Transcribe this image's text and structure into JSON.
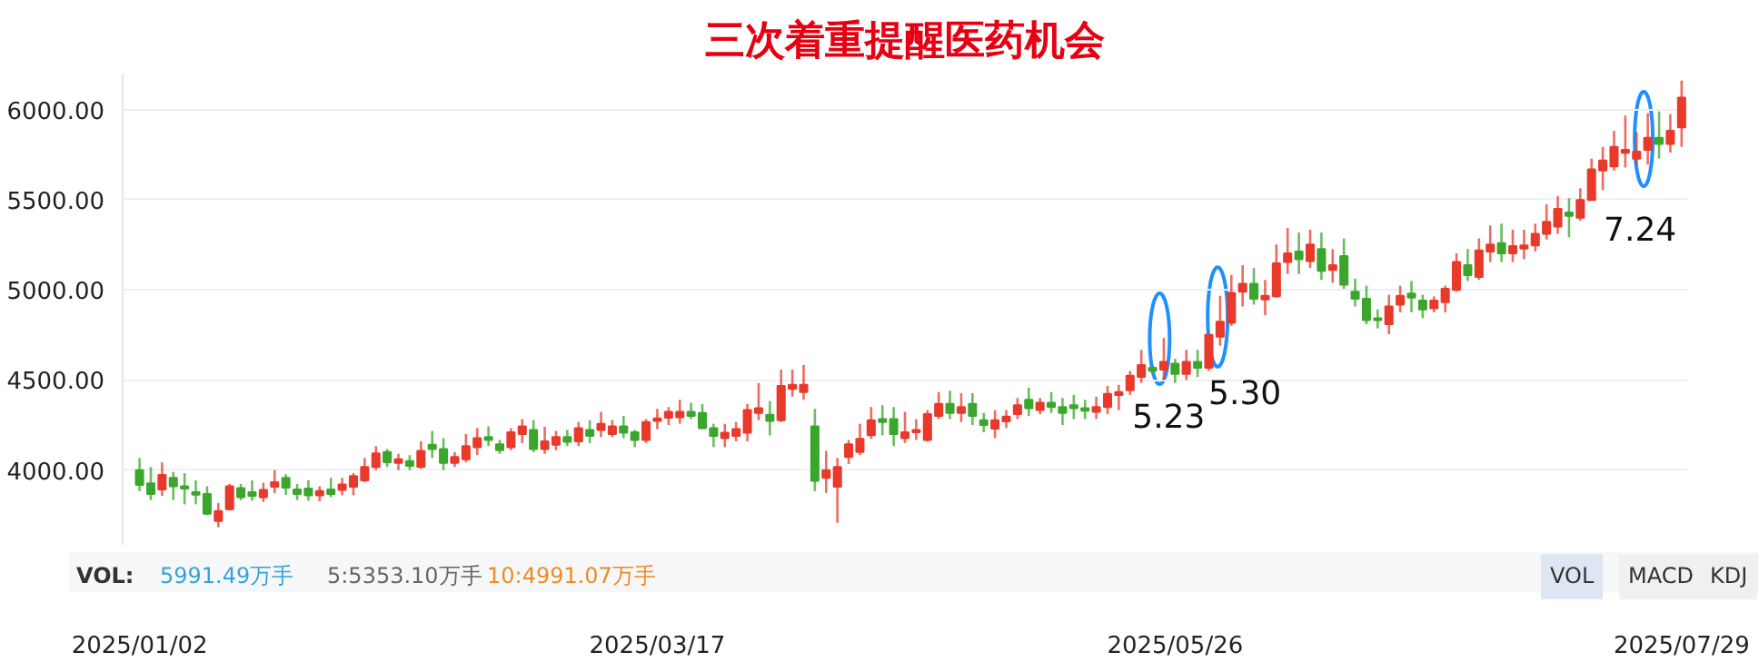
{
  "chart_data": {
    "type": "candlestick",
    "title": "三次着重提醒医药机会",
    "categories": [
      "2025/01/02",
      null,
      null,
      null,
      null,
      null,
      null,
      null,
      null,
      null,
      null,
      null,
      null,
      null,
      null,
      null,
      null,
      null,
      null,
      null,
      null,
      null,
      null,
      null,
      null,
      null,
      null,
      null,
      null,
      null,
      null,
      null,
      null,
      null,
      null,
      null,
      null,
      null,
      null,
      null,
      null,
      null,
      null,
      null,
      null,
      null,
      "2025/03/17",
      null,
      null,
      null,
      null,
      null,
      null,
      null,
      null,
      null,
      null,
      null,
      null,
      null,
      null,
      null,
      null,
      null,
      null,
      null,
      null,
      null,
      null,
      null,
      null,
      null,
      null,
      null,
      null,
      null,
      null,
      null,
      null,
      null,
      null,
      null,
      null,
      null,
      null,
      null,
      null,
      null,
      null,
      null,
      null,
      null,
      "2025/05/26",
      null,
      null,
      null,
      null,
      null,
      null,
      null,
      null,
      null,
      null,
      null,
      null,
      null,
      null,
      null,
      null,
      null,
      null,
      null,
      null,
      null,
      null,
      null,
      null,
      null,
      null,
      null,
      null,
      null,
      null,
      null,
      null,
      null,
      null,
      null,
      null,
      null,
      null,
      null,
      null,
      null,
      null,
      null,
      null,
      "2025/07/29"
    ],
    "ohlc": [
      [
        4000,
        4067,
        3883,
        3917
      ],
      [
        3927,
        4017,
        3833,
        3867
      ],
      [
        3893,
        4043,
        3857,
        3973
      ],
      [
        3957,
        3990,
        3833,
        3910
      ],
      [
        3910,
        3983,
        3810,
        3897
      ],
      [
        3877,
        3943,
        3810,
        3863
      ],
      [
        3867,
        3910,
        3750,
        3757
      ],
      [
        3717,
        3817,
        3683,
        3773
      ],
      [
        3783,
        3923,
        3777,
        3910
      ],
      [
        3900,
        3923,
        3833,
        3850
      ],
      [
        3877,
        3943,
        3830,
        3857
      ],
      [
        3850,
        3930,
        3823,
        3890
      ],
      [
        3907,
        4000,
        3873,
        3933
      ],
      [
        3957,
        3977,
        3863,
        3903
      ],
      [
        3893,
        3923,
        3833,
        3867
      ],
      [
        3897,
        3943,
        3830,
        3860
      ],
      [
        3860,
        3910,
        3827,
        3883
      ],
      [
        3893,
        3957,
        3850,
        3867
      ],
      [
        3890,
        3957,
        3860,
        3920
      ],
      [
        3907,
        3983,
        3860,
        3967
      ],
      [
        3943,
        4067,
        3933,
        4017
      ],
      [
        4017,
        4133,
        4000,
        4093
      ],
      [
        4100,
        4117,
        4017,
        4043
      ],
      [
        4040,
        4090,
        4000,
        4060
      ],
      [
        4050,
        4083,
        4000,
        4023
      ],
      [
        4017,
        4160,
        4007,
        4107
      ],
      [
        4140,
        4217,
        4067,
        4117
      ],
      [
        4117,
        4177,
        4000,
        4040
      ],
      [
        4040,
        4100,
        4017,
        4073
      ],
      [
        4060,
        4200,
        4043,
        4133
      ],
      [
        4127,
        4233,
        4083,
        4177
      ],
      [
        4183,
        4243,
        4133,
        4167
      ],
      [
        4143,
        4167,
        4090,
        4110
      ],
      [
        4127,
        4233,
        4110,
        4210
      ],
      [
        4200,
        4283,
        4150,
        4243
      ],
      [
        4223,
        4277,
        4100,
        4117
      ],
      [
        4117,
        4240,
        4090,
        4160
      ],
      [
        4140,
        4217,
        4110,
        4183
      ],
      [
        4183,
        4223,
        4133,
        4157
      ],
      [
        4160,
        4267,
        4133,
        4233
      ],
      [
        4223,
        4277,
        4150,
        4190
      ],
      [
        4223,
        4323,
        4183,
        4257
      ],
      [
        4200,
        4277,
        4183,
        4243
      ],
      [
        4243,
        4300,
        4177,
        4207
      ],
      [
        4210,
        4223,
        4127,
        4167
      ],
      [
        4167,
        4283,
        4150,
        4267
      ],
      [
        4273,
        4340,
        4227,
        4287
      ],
      [
        4290,
        4350,
        4250,
        4323
      ],
      [
        4293,
        4390,
        4257,
        4323
      ],
      [
        4323,
        4373,
        4283,
        4300
      ],
      [
        4317,
        4367,
        4227,
        4233
      ],
      [
        4233,
        4257,
        4127,
        4190
      ],
      [
        4177,
        4257,
        4127,
        4207
      ],
      [
        4190,
        4267,
        4160,
        4227
      ],
      [
        4207,
        4367,
        4160,
        4333
      ],
      [
        4317,
        4483,
        4277,
        4343
      ],
      [
        4307,
        4383,
        4193,
        4273
      ],
      [
        4277,
        4557,
        4267,
        4467
      ],
      [
        4450,
        4557,
        4407,
        4473
      ],
      [
        4433,
        4583,
        4390,
        4473
      ],
      [
        4243,
        4340,
        3883,
        3940
      ],
      [
        3957,
        4107,
        3873,
        4000
      ],
      [
        3907,
        4067,
        3707,
        4017
      ],
      [
        4073,
        4167,
        4033,
        4143
      ],
      [
        4100,
        4257,
        4083,
        4173
      ],
      [
        4193,
        4350,
        4173,
        4277
      ],
      [
        4283,
        4360,
        4193,
        4267
      ],
      [
        4283,
        4350,
        4133,
        4200
      ],
      [
        4177,
        4323,
        4150,
        4210
      ],
      [
        4210,
        4283,
        4167,
        4223
      ],
      [
        4167,
        4333,
        4157,
        4310
      ],
      [
        4300,
        4433,
        4283,
        4367
      ],
      [
        4367,
        4440,
        4283,
        4317
      ],
      [
        4317,
        4427,
        4267,
        4350
      ],
      [
        4367,
        4427,
        4250,
        4300
      ],
      [
        4277,
        4317,
        4210,
        4250
      ],
      [
        4230,
        4333,
        4177,
        4277
      ],
      [
        4270,
        4333,
        4233,
        4297
      ],
      [
        4310,
        4400,
        4283,
        4360
      ],
      [
        4390,
        4457,
        4300,
        4343
      ],
      [
        4333,
        4400,
        4310,
        4373
      ],
      [
        4373,
        4433,
        4317,
        4350
      ],
      [
        4350,
        4400,
        4250,
        4317
      ],
      [
        4360,
        4417,
        4283,
        4343
      ],
      [
        4343,
        4390,
        4283,
        4330
      ],
      [
        4323,
        4407,
        4283,
        4350
      ],
      [
        4350,
        4467,
        4310,
        4423
      ],
      [
        4417,
        4473,
        4333,
        4433
      ],
      [
        4443,
        4550,
        4417,
        4523
      ],
      [
        4517,
        4667,
        4483,
        4583
      ],
      [
        4567,
        4583,
        4533,
        4550
      ],
      [
        4557,
        4733,
        4500,
        4600
      ],
      [
        4590,
        4617,
        4483,
        4533
      ],
      [
        4533,
        4667,
        4500,
        4600
      ],
      [
        4600,
        4667,
        4517,
        4567
      ],
      [
        4567,
        4757,
        4550,
        4750
      ],
      [
        4740,
        4967,
        4690,
        4823
      ],
      [
        4817,
        5083,
        4800,
        4983
      ],
      [
        4990,
        5137,
        4908,
        5033
      ],
      [
        5033,
        5121,
        4918,
        4950
      ],
      [
        4947,
        5055,
        4859,
        4967
      ],
      [
        4964,
        5252,
        4957,
        5147
      ],
      [
        5154,
        5344,
        5088,
        5203
      ],
      [
        5213,
        5318,
        5088,
        5170
      ],
      [
        5160,
        5334,
        5121,
        5252
      ],
      [
        5226,
        5318,
        5055,
        5105
      ],
      [
        5111,
        5226,
        5039,
        5137
      ],
      [
        5187,
        5285,
        5006,
        5029
      ],
      [
        4990,
        5062,
        4908,
        4950
      ],
      [
        4950,
        5023,
        4809,
        4832
      ],
      [
        4842,
        4891,
        4786,
        4832
      ],
      [
        4809,
        4973,
        4754,
        4908
      ],
      [
        4918,
        5023,
        4875,
        4967
      ],
      [
        4980,
        5049,
        4875,
        4957
      ],
      [
        4941,
        4973,
        4842,
        4891
      ],
      [
        4898,
        4964,
        4875,
        4941
      ],
      [
        4931,
        5023,
        4875,
        5006
      ],
      [
        5000,
        5203,
        4990,
        5154
      ],
      [
        5137,
        5226,
        5049,
        5082
      ],
      [
        5072,
        5285,
        5055,
        5219
      ],
      [
        5213,
        5357,
        5154,
        5252
      ],
      [
        5259,
        5367,
        5154,
        5203
      ],
      [
        5203,
        5334,
        5154,
        5243
      ],
      [
        5229,
        5334,
        5170,
        5246
      ],
      [
        5246,
        5367,
        5213,
        5311
      ],
      [
        5311,
        5475,
        5279,
        5377
      ],
      [
        5351,
        5521,
        5311,
        5449
      ],
      [
        5429,
        5508,
        5292,
        5410
      ],
      [
        5400,
        5564,
        5384,
        5498
      ],
      [
        5498,
        5728,
        5498,
        5669
      ],
      [
        5662,
        5793,
        5554,
        5718
      ],
      [
        5685,
        5882,
        5662,
        5793
      ],
      [
        5761,
        5967,
        5679,
        5777
      ],
      [
        5728,
        5875,
        5695,
        5767
      ],
      [
        5777,
        5980,
        5695,
        5843
      ],
      [
        5843,
        5990,
        5728,
        5810
      ],
      [
        5810,
        5974,
        5761,
        5882
      ],
      [
        5902,
        6161,
        5793,
        6066
      ]
    ],
    "colors": [
      "#3aa62c",
      "#3aa62c",
      "#e8392b",
      "#3aa62c",
      "#3aa62c",
      "#3aa62c",
      "#3aa62c",
      "#e8392b",
      "#e8392b",
      "#3aa62c",
      "#3aa62c",
      "#e8392b",
      "#e8392b",
      "#3aa62c",
      "#3aa62c",
      "#3aa62c",
      "#e8392b",
      "#3aa62c",
      "#e8392b",
      "#e8392b",
      "#e8392b",
      "#e8392b",
      "#3aa62c",
      "#e8392b",
      "#3aa62c",
      "#e8392b",
      "#3aa62c",
      "#3aa62c",
      "#e8392b",
      "#e8392b",
      "#e8392b",
      "#3aa62c",
      "#3aa62c",
      "#e8392b",
      "#e8392b",
      "#3aa62c",
      "#e8392b",
      "#e8392b",
      "#3aa62c",
      "#e8392b",
      "#3aa62c",
      "#e8392b",
      "#e8392b",
      "#3aa62c",
      "#3aa62c",
      "#e8392b",
      "#e8392b",
      "#e8392b",
      "#e8392b",
      "#3aa62c",
      "#3aa62c",
      "#3aa62c",
      "#e8392b",
      "#e8392b",
      "#e8392b",
      "#e8392b",
      "#3aa62c",
      "#e8392b",
      "#e8392b",
      "#e8392b",
      "#3aa62c",
      "#e8392b",
      "#e8392b",
      "#e8392b",
      "#e8392b",
      "#e8392b",
      "#3aa62c",
      "#3aa62c",
      "#e8392b",
      "#e8392b",
      "#e8392b",
      "#e8392b",
      "#3aa62c",
      "#e8392b",
      "#3aa62c",
      "#3aa62c",
      "#e8392b",
      "#e8392b",
      "#e8392b",
      "#3aa62c",
      "#e8392b",
      "#3aa62c",
      "#3aa62c",
      "#3aa62c",
      "#3aa62c",
      "#e8392b",
      "#e8392b",
      "#e8392b",
      "#e8392b",
      "#e8392b",
      "#3aa62c",
      "#e8392b",
      "#3aa62c",
      "#e8392b",
      "#3aa62c",
      "#e8392b",
      "#e8392b",
      "#e8392b",
      "#e8392b",
      "#3aa62c",
      "#e8392b",
      "#e8392b",
      "#e8392b",
      "#3aa62c",
      "#e8392b",
      "#3aa62c",
      "#e8392b",
      "#3aa62c",
      "#3aa62c",
      "#3aa62c",
      "#3aa62c",
      "#e8392b",
      "#e8392b",
      "#3aa62c",
      "#3aa62c",
      "#e8392b",
      "#e8392b",
      "#e8392b",
      "#3aa62c",
      "#e8392b",
      "#e8392b",
      "#3aa62c",
      "#e8392b",
      "#e8392b",
      "#e8392b",
      "#e8392b",
      "#e8392b",
      "#3aa62c",
      "#e8392b",
      "#e8392b",
      "#e8392b",
      "#e8392b",
      "#e8392b",
      "#e8392b",
      "#e8392b",
      "#3aa62c",
      "#e8392b",
      "#e8392b"
    ],
    "ylim": [
      3580,
      6200
    ],
    "yticks": [
      {
        "value": 4000,
        "label": "4000.00"
      },
      {
        "value": 4500,
        "label": "4500.00"
      },
      {
        "value": 5000,
        "label": "5000.00"
      },
      {
        "value": 5500,
        "label": "5500.00"
      },
      {
        "value": 6000,
        "label": "6000.00"
      }
    ],
    "grid": "y",
    "annotations": [
      "5.23",
      "5.30",
      "7.24",
      "VOL:",
      "5991.49万手",
      "5:5353.10万手",
      "10:4991.07万手",
      "VOL",
      "MACD",
      "KDJ"
    ]
  }
}
